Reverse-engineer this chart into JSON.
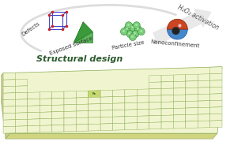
{
  "title": "Structural design",
  "arrow_text": "H₂O₂ activation",
  "labels": [
    "Defects",
    "Exposed surface",
    "Particle size",
    "Nanoconfinement"
  ],
  "bg_color": "#ffffff",
  "pt_bg": "#f0f5d0",
  "pt_border": "#8aaa50",
  "pt_highlight": "#c8d870",
  "title_color": "#2a5a2a",
  "label_color": "#3a3a3a",
  "arrow_color": "#cccccc",
  "fe_fontsize": 2.8,
  "element_fontsize": 2.2,
  "title_fontsize": 8,
  "label_fontsize": 5,
  "arrow_text_fontsize": 5.5
}
